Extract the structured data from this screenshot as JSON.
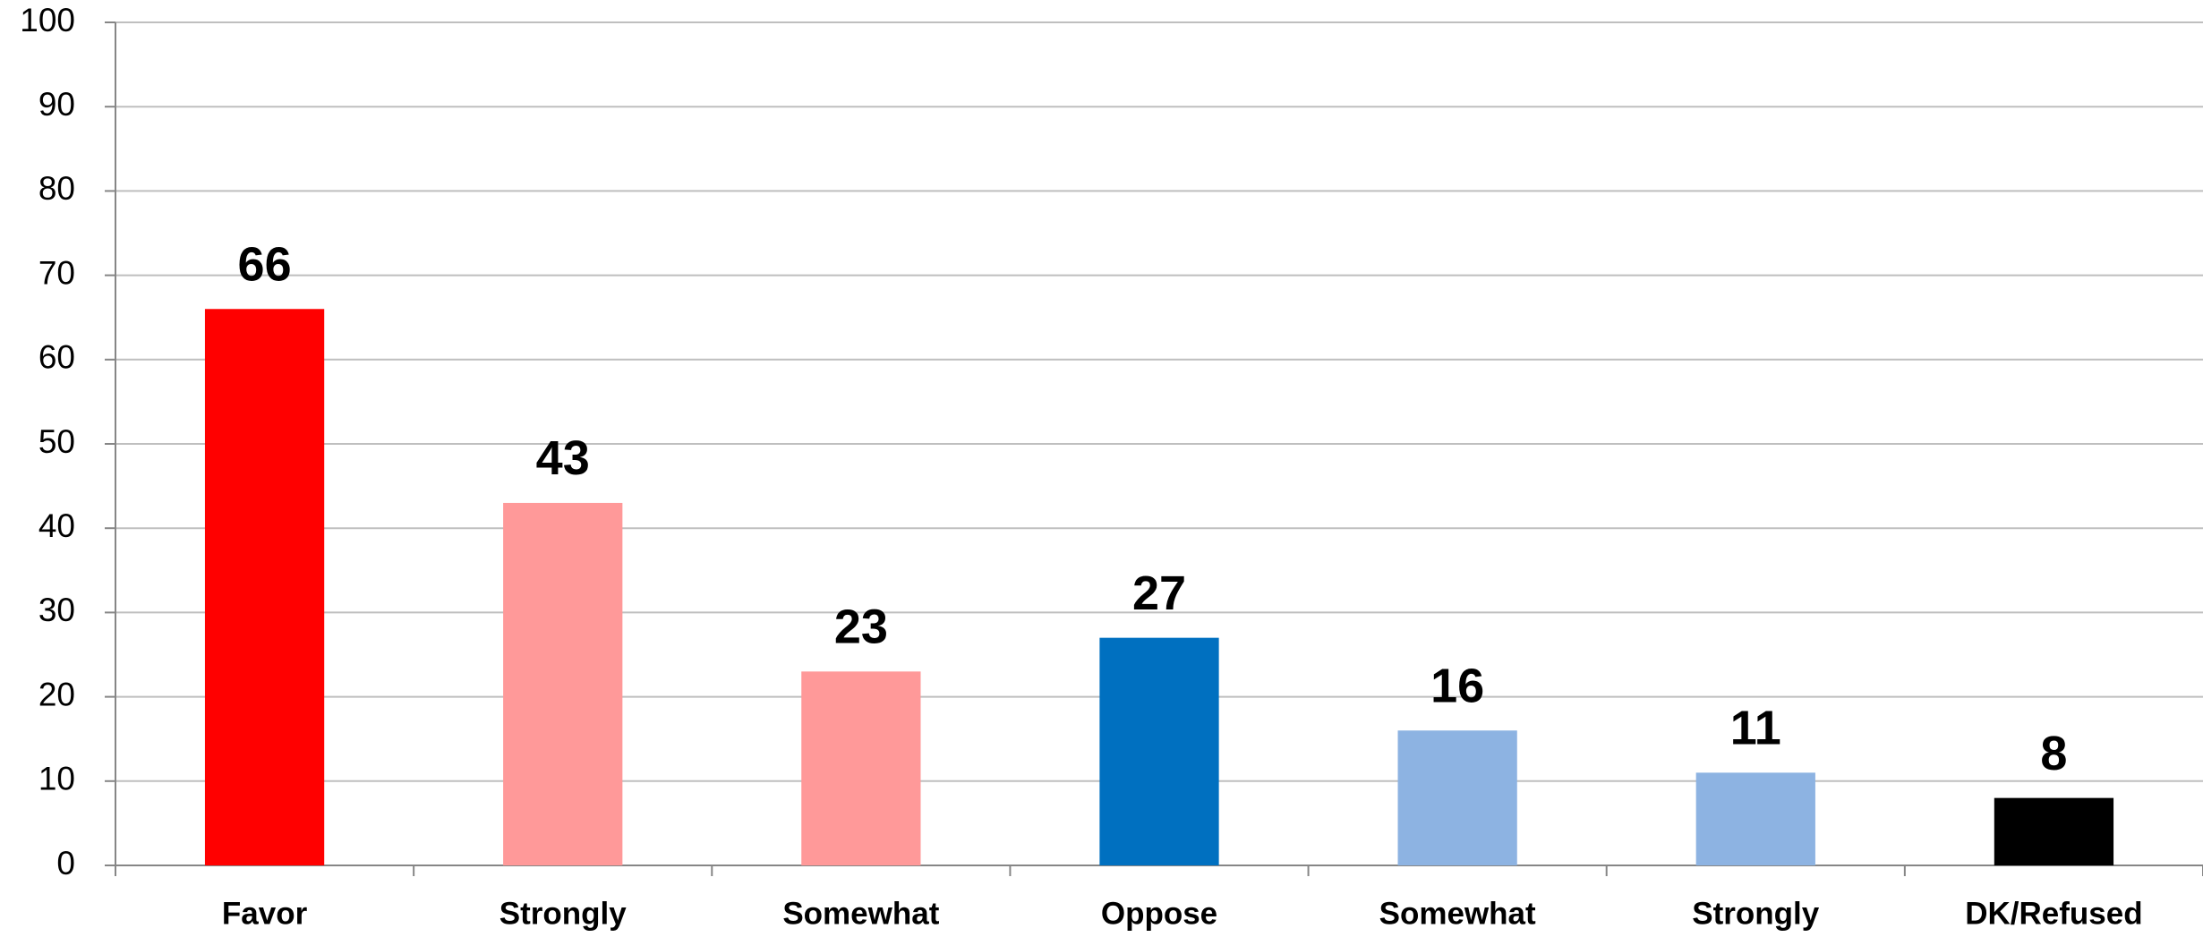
{
  "chart_data": {
    "type": "bar",
    "categories": [
      "Favor",
      "Strongly",
      "Somewhat",
      "Oppose",
      "Somewhat",
      "Strongly",
      "DK/Refused"
    ],
    "values": [
      66,
      43,
      23,
      27,
      16,
      11,
      8
    ],
    "colors": [
      "#ff0000",
      "#ff9999",
      "#ff9999",
      "#0070c0",
      "#8db3e2",
      "#8db3e2",
      "#000000"
    ],
    "ylim": [
      0,
      100
    ],
    "yticks": [
      0,
      10,
      20,
      30,
      40,
      50,
      60,
      70,
      80,
      90,
      100
    ],
    "grid": true
  }
}
